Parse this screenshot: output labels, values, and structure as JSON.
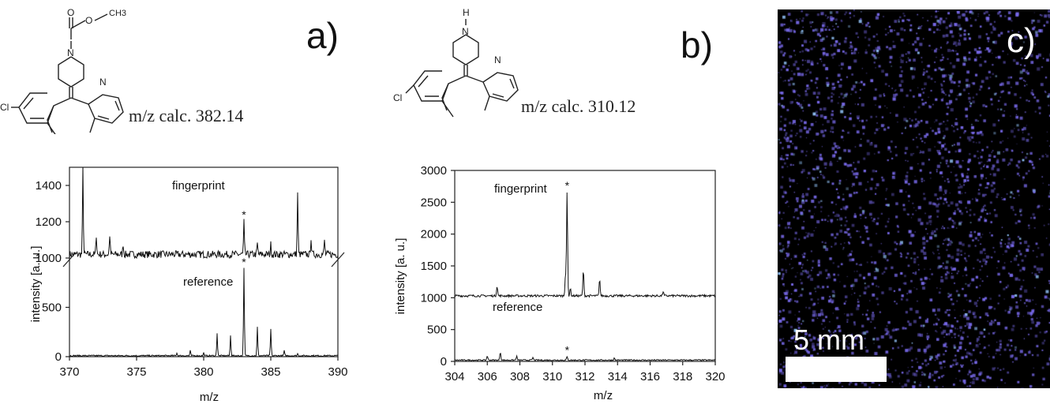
{
  "panels": {
    "a": {
      "letter": "a)",
      "calc_label": "m/z calc. 382.14",
      "molecule_atoms": {
        "carbonyl_O": "O",
        "ester_O": "O",
        "ethyl": "CH3",
        "piperidine_N": "N",
        "pyridine_N": "N",
        "chlorine": "Cl"
      }
    },
    "b": {
      "letter": "b)",
      "calc_label": "m/z calc. 310.12",
      "molecule_atoms": {
        "piperidine_NH": "H",
        "piperidine_N": "N",
        "pyridine_N": "N",
        "chlorine": "Cl"
      }
    },
    "c": {
      "letter": "c)",
      "scale_label": "5 mm",
      "colors": {
        "background": "#000000",
        "signal": "#7b6cf0",
        "bar": "#ffffff"
      }
    }
  },
  "chart_data": [
    {
      "type": "line",
      "xlabel": "m/z",
      "ylabel": "intensity [a. u.]",
      "xlim": [
        370,
        390
      ],
      "x_ticks": [
        "370",
        "375",
        "380",
        "385",
        "390"
      ],
      "y_ticks": [
        "0",
        "500",
        "1000",
        "1200",
        "1400"
      ],
      "axis_break": "between 500 and 1000",
      "annotations": [
        "fingerprint",
        "reference"
      ],
      "marker": "*",
      "series": [
        {
          "name": "fingerprint",
          "baseline": 1020,
          "peaks": [
            {
              "x": 371,
              "y": 1500
            },
            {
              "x": 372,
              "y": 1130
            },
            {
              "x": 373,
              "y": 1130
            },
            {
              "x": 374,
              "y": 1080
            },
            {
              "x": 383,
              "y": 1200
            },
            {
              "x": 384,
              "y": 1080
            },
            {
              "x": 385,
              "y": 1075
            },
            {
              "x": 387,
              "y": 1365
            },
            {
              "x": 388,
              "y": 1115
            },
            {
              "x": 389,
              "y": 1100
            }
          ]
        },
        {
          "name": "reference",
          "baseline": 10,
          "peaks": [
            {
              "x": 378,
              "y": 40
            },
            {
              "x": 379,
              "y": 60
            },
            {
              "x": 380,
              "y": 40
            },
            {
              "x": 381,
              "y": 240
            },
            {
              "x": 382,
              "y": 220
            },
            {
              "x": 383,
              "y": 940
            },
            {
              "x": 384,
              "y": 300
            },
            {
              "x": 385,
              "y": 280
            },
            {
              "x": 386,
              "y": 60
            },
            {
              "x": 387,
              "y": 30
            }
          ]
        }
      ]
    },
    {
      "type": "line",
      "xlabel": "m/z",
      "ylabel": "intensity [a. u.]",
      "xlim": [
        304,
        320
      ],
      "ylim": [
        0,
        3000
      ],
      "x_ticks": [
        "304",
        "306",
        "308",
        "310",
        "312",
        "314",
        "316",
        "318",
        "320"
      ],
      "y_ticks": [
        "0",
        "500",
        "1000",
        "1500",
        "2000",
        "2500",
        "3000"
      ],
      "annotations": [
        "fingerprint",
        "reference"
      ],
      "marker": "*",
      "series": [
        {
          "name": "fingerprint",
          "baseline": 1030,
          "peaks": [
            {
              "x": 306.6,
              "y": 1190
            },
            {
              "x": 310.8,
              "y": 1380
            },
            {
              "x": 310.9,
              "y": 2650
            },
            {
              "x": 311.1,
              "y": 1150
            },
            {
              "x": 311.9,
              "y": 1440
            },
            {
              "x": 312.9,
              "y": 1300
            },
            {
              "x": 316.8,
              "y": 1100
            }
          ]
        },
        {
          "name": "reference",
          "baseline": 20,
          "peaks": [
            {
              "x": 306.0,
              "y": 90
            },
            {
              "x": 306.8,
              "y": 150
            },
            {
              "x": 307.8,
              "y": 80
            },
            {
              "x": 308.8,
              "y": 60
            },
            {
              "x": 310.9,
              "y": 70
            },
            {
              "x": 313.8,
              "y": 50
            }
          ]
        }
      ]
    }
  ]
}
